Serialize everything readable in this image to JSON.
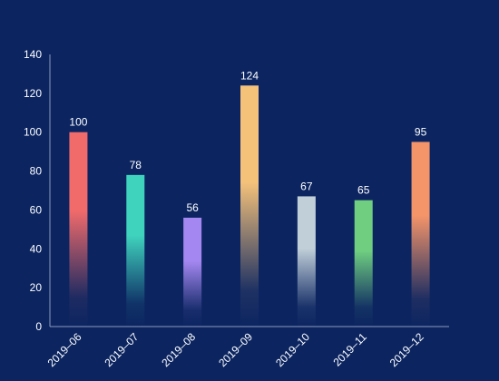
{
  "chart_data": {
    "type": "bar",
    "categories": [
      "2019–06",
      "2019–07",
      "2019–08",
      "2019–09",
      "2019–10",
      "2019–11",
      "2019–12"
    ],
    "values": [
      100,
      78,
      56,
      124,
      67,
      65,
      95
    ],
    "bar_colors": [
      "#f26b6b",
      "#3fd2bd",
      "#a487f0",
      "#f5c27a",
      "#c1cfd9",
      "#6fce80",
      "#f39469"
    ],
    "ylim": [
      0,
      140
    ],
    "yticks": [
      0,
      20,
      40,
      60,
      80,
      100,
      120,
      140
    ],
    "title": "",
    "xlabel": "",
    "ylabel": "",
    "grid": false,
    "data_labels": true,
    "colors": {
      "background": "#0c2561",
      "axis": "#8d9bc0",
      "text": "#ffffff"
    }
  }
}
